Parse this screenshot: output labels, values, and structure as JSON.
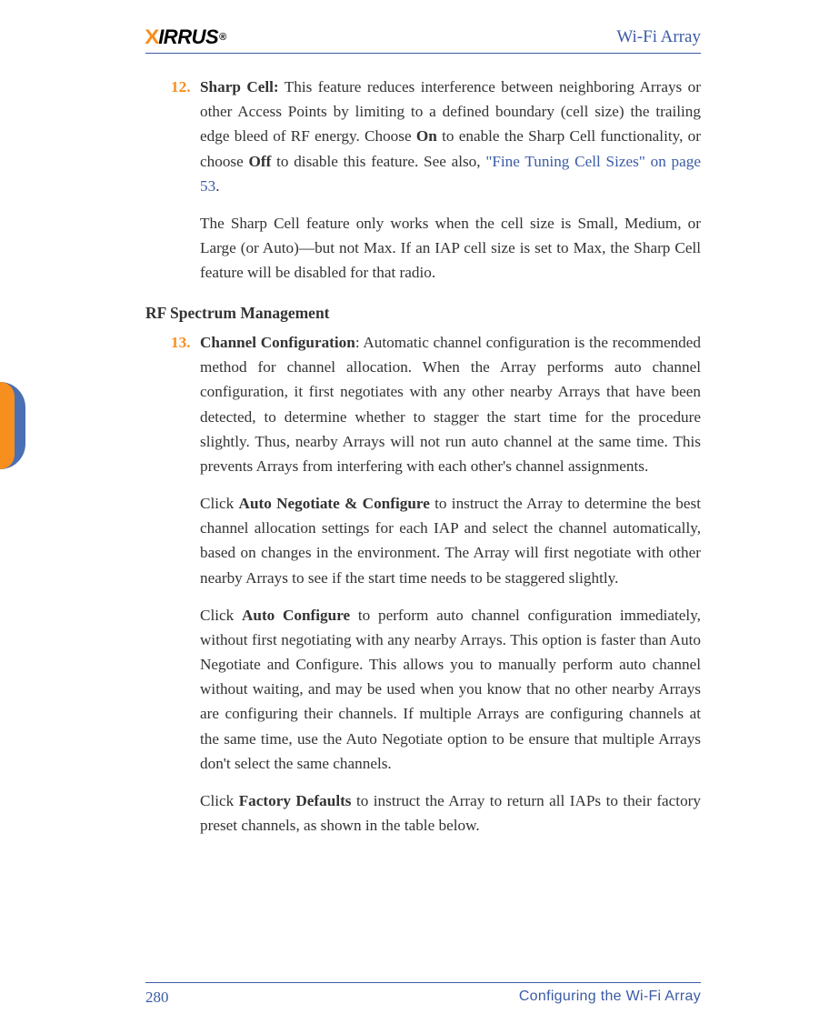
{
  "header": {
    "logo_pre": "X",
    "logo_main": "IRRUS",
    "logo_reg": "®",
    "doc_title": "Wi-Fi Array"
  },
  "colors": {
    "brand_blue": "#3b5ba5",
    "brand_orange": "#f78f1e",
    "text": "#333333",
    "link": "#3b5ba5"
  },
  "item12": {
    "number": "12.",
    "lead_strong": "Sharp Cell:",
    "para1_a": " This feature reduces interference between neighboring Arrays or other Access Points by limiting to a defined boundary (cell size) the trailing edge bleed of RF energy. Choose ",
    "on": "On",
    "para1_b": " to enable the Sharp Cell functionality, or choose ",
    "off": "Off",
    "para1_c": " to disable this feature. See also, ",
    "link_text": "\"Fine Tuning Cell Sizes\" on page 53",
    "para1_end": ".",
    "para2": "The Sharp Cell feature only works when the cell size is Small, Medium, or Large (or Auto)—but not Max. If an IAP cell size is set to Max, the Sharp Cell feature will be disabled for that radio."
  },
  "section_heading": "RF Spectrum Management",
  "item13": {
    "number": "13.",
    "lead_strong": "Channel Configuration",
    "para1": ": Automatic channel configuration is the recommended method for channel allocation. When the Array performs auto channel configuration, it first negotiates with any other nearby Arrays that have been detected, to determine whether to stagger the start time for the procedure slightly. Thus, nearby Arrays will not run auto channel at the same time. This prevents Arrays from interfering with each other's channel assignments.",
    "para2_a": "Click ",
    "para2_strong": "Auto Negotiate & Configure",
    "para2_b": " to instruct the Array to determine the best channel allocation settings for each IAP and select the channel automatically, based on changes in the environment. The Array will first negotiate with other nearby Arrays to see if the start time needs to be staggered slightly.",
    "para3_a": "Click ",
    "para3_strong": "Auto Configure",
    "para3_b": " to perform auto channel configuration immediately, without first negotiating with any nearby Arrays. This option is faster than Auto Negotiate and Configure. This allows you to manually perform auto channel without waiting, and may be used when you know that no other nearby Arrays are configuring their channels. If multiple Arrays are configuring channels at the same time, use the Auto Negotiate option to be ensure that multiple Arrays don't select the same channels.",
    "para4_a": "Click ",
    "para4_strong": "Factory Defaults",
    "para4_b": " to instruct the Array to return all IAPs to their factory preset channels, as shown in the table below."
  },
  "footer": {
    "page_number": "280",
    "section_title": "Configuring the Wi-Fi Array"
  }
}
